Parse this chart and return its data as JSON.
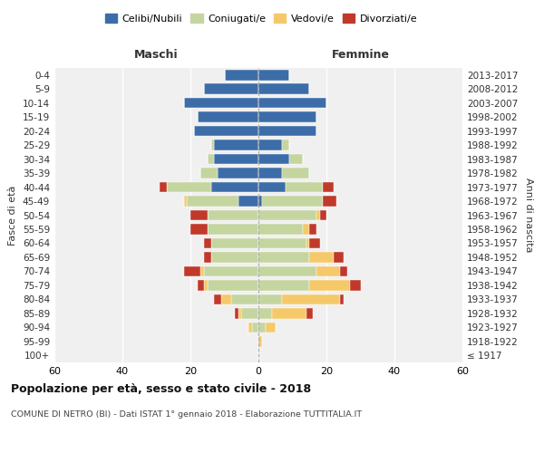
{
  "age_groups": [
    "100+",
    "95-99",
    "90-94",
    "85-89",
    "80-84",
    "75-79",
    "70-74",
    "65-69",
    "60-64",
    "55-59",
    "50-54",
    "45-49",
    "40-44",
    "35-39",
    "30-34",
    "25-29",
    "20-24",
    "15-19",
    "10-14",
    "5-9",
    "0-4"
  ],
  "birth_years": [
    "≤ 1917",
    "1918-1922",
    "1923-1927",
    "1928-1932",
    "1933-1937",
    "1938-1942",
    "1943-1947",
    "1948-1952",
    "1953-1957",
    "1958-1962",
    "1963-1967",
    "1968-1972",
    "1973-1977",
    "1978-1982",
    "1983-1987",
    "1988-1992",
    "1993-1997",
    "1998-2002",
    "2003-2007",
    "2008-2012",
    "2013-2017"
  ],
  "maschi": {
    "celibi": [
      0,
      0,
      0,
      0,
      0,
      0,
      0,
      0,
      0,
      0,
      0,
      6,
      14,
      12,
      13,
      13,
      19,
      18,
      22,
      16,
      10
    ],
    "coniugati": [
      0,
      0,
      2,
      5,
      8,
      15,
      16,
      14,
      14,
      15,
      15,
      15,
      13,
      5,
      2,
      1,
      0,
      0,
      0,
      0,
      0
    ],
    "vedovi": [
      0,
      0,
      1,
      1,
      3,
      1,
      1,
      0,
      0,
      0,
      0,
      1,
      0,
      0,
      0,
      0,
      0,
      0,
      0,
      0,
      0
    ],
    "divorziati": [
      0,
      0,
      0,
      1,
      2,
      2,
      5,
      2,
      2,
      5,
      5,
      0,
      2,
      0,
      0,
      0,
      0,
      0,
      0,
      0,
      0
    ]
  },
  "femmine": {
    "nubili": [
      0,
      0,
      0,
      0,
      0,
      0,
      0,
      0,
      0,
      0,
      0,
      1,
      8,
      7,
      9,
      7,
      17,
      17,
      20,
      15,
      9
    ],
    "coniugate": [
      0,
      0,
      2,
      4,
      7,
      15,
      17,
      15,
      14,
      13,
      17,
      18,
      11,
      8,
      4,
      2,
      0,
      0,
      0,
      0,
      0
    ],
    "vedove": [
      0,
      1,
      3,
      10,
      17,
      12,
      7,
      7,
      1,
      2,
      1,
      0,
      0,
      0,
      0,
      0,
      0,
      0,
      0,
      0,
      0
    ],
    "divorziate": [
      0,
      0,
      0,
      2,
      1,
      3,
      2,
      3,
      3,
      2,
      2,
      4,
      3,
      0,
      0,
      0,
      0,
      0,
      0,
      0,
      0
    ]
  },
  "colors": {
    "celibi": "#3d6da8",
    "coniugati": "#c5d5a0",
    "vedovi": "#f5c96a",
    "divorziati": "#c0392b"
  },
  "title": "Popolazione per età, sesso e stato civile - 2018",
  "subtitle": "COMUNE DI NETRO (BI) - Dati ISTAT 1° gennaio 2018 - Elaborazione TUTTITALIA.IT",
  "xlabel_left": "Maschi",
  "xlabel_right": "Femmine",
  "ylabel": "Fasce di età",
  "ylabel_right": "Anni di nascita",
  "xlim": 60,
  "background_color": "#f0f0f0"
}
